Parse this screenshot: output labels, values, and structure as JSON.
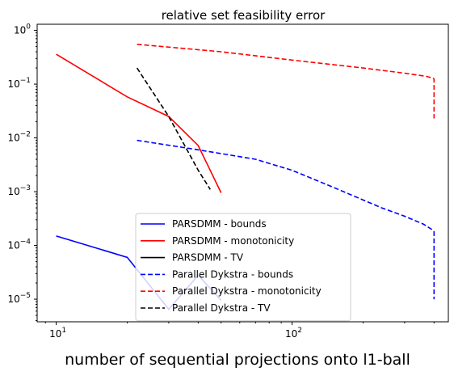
{
  "chart_data": {
    "type": "line",
    "title": "relative set feasibility error",
    "xlabel": "number of sequential projections onto l1-ball",
    "ylabel": "",
    "xscale": "log",
    "yscale": "log",
    "xlim": [
      8.3,
      460
    ],
    "ylim": [
      3.8e-06,
      1.3
    ],
    "x_ticks": [
      {
        "value": 10,
        "base": "10",
        "exp": "1"
      },
      {
        "value": 100,
        "base": "10",
        "exp": "2"
      }
    ],
    "y_ticks": [
      {
        "value": 1e-05,
        "base": "10",
        "exp": "−5"
      },
      {
        "value": 0.0001,
        "base": "10",
        "exp": "−4"
      },
      {
        "value": 0.001,
        "base": "10",
        "exp": "−3"
      },
      {
        "value": 0.01,
        "base": "10",
        "exp": "−2"
      },
      {
        "value": 0.1,
        "base": "10",
        "exp": "−1"
      },
      {
        "value": 1,
        "base": "10",
        "exp": "0"
      }
    ],
    "grid": false,
    "legend_position": "bottom-center",
    "series": [
      {
        "name": "PARSDMM - bounds",
        "color": "#0000ff",
        "dash": "solid",
        "x": [
          10,
          20,
          30,
          40,
          50
        ],
        "y": [
          0.00015,
          6e-05,
          6.5e-06,
          2.8e-05,
          9.5e-06
        ]
      },
      {
        "name": "PARSDMM - monotonicity",
        "color": "#ff0000",
        "dash": "solid",
        "x": [
          10,
          20,
          30,
          40,
          50
        ],
        "y": [
          0.36,
          0.058,
          0.025,
          0.0072,
          0.00095
        ]
      },
      {
        "name": "PARSDMM - TV",
        "color": "#000000",
        "dash": "solid",
        "x": [],
        "y": []
      },
      {
        "name": "Parallel Dykstra - bounds",
        "color": "#0000ff",
        "dash": "dashed",
        "x": [
          22,
          40,
          70,
          100,
          150,
          240,
          300,
          360,
          390,
          400,
          400
        ],
        "y": [
          0.009,
          0.006,
          0.004,
          0.0025,
          0.0012,
          0.0005,
          0.00035,
          0.00025,
          0.0002,
          0.00018,
          1e-05
        ]
      },
      {
        "name": "Parallel Dykstra - monotonicity",
        "color": "#ff0000",
        "dash": "dashed",
        "x": [
          22,
          50,
          100,
          200,
          300,
          370,
          395,
          400,
          400
        ],
        "y": [
          0.55,
          0.4,
          0.28,
          0.2,
          0.16,
          0.14,
          0.13,
          0.125,
          0.023
        ]
      },
      {
        "name": "Parallel Dykstra - TV",
        "color": "#000000",
        "dash": "dashed",
        "x": [
          22,
          30,
          40,
          45
        ],
        "y": [
          0.2,
          0.025,
          0.0025,
          0.0011
        ]
      }
    ]
  }
}
